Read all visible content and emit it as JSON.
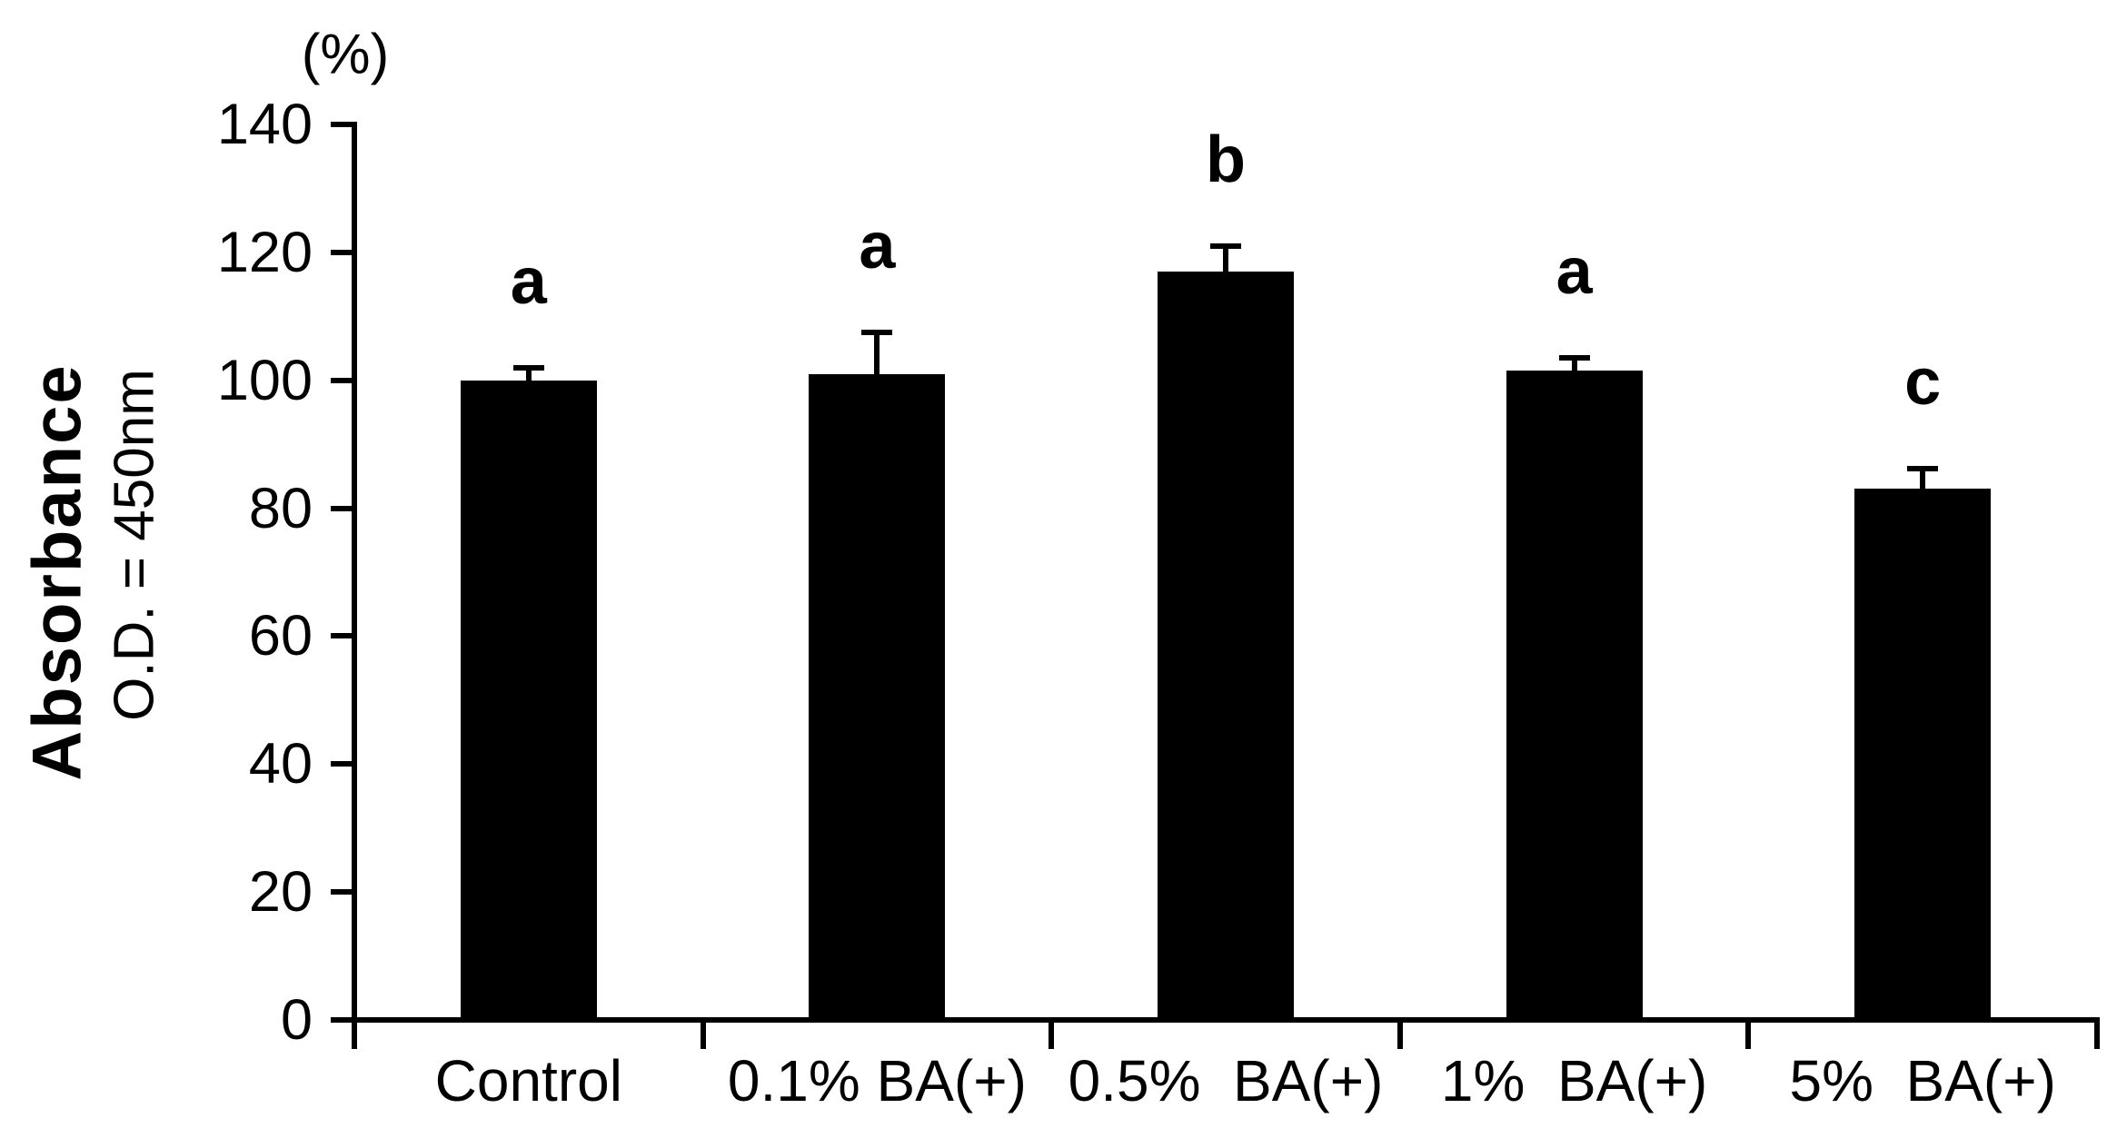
{
  "chart_data": {
    "type": "bar",
    "title": "",
    "unit_label": "(%)",
    "ylabel": "Absorbance",
    "ylabel_sub": "O.D. = 450nm",
    "categories": [
      "Control",
      "0.1% BA(+)",
      "0.5%  BA(+)",
      "1%  BA(+)",
      "5%  BA(+)"
    ],
    "values": [
      100,
      101,
      117,
      101.5,
      83
    ],
    "errors_plus": [
      2,
      6.5,
      4,
      2,
      3.2
    ],
    "sig_letters": [
      "a",
      "a",
      "b",
      "a",
      "c"
    ],
    "y_ticks": [
      0,
      20,
      40,
      60,
      80,
      100,
      120,
      140
    ],
    "ylim": [
      0,
      140
    ],
    "bar_color": "#000000",
    "axis_color": "#000000",
    "grid": false,
    "legend": null
  }
}
